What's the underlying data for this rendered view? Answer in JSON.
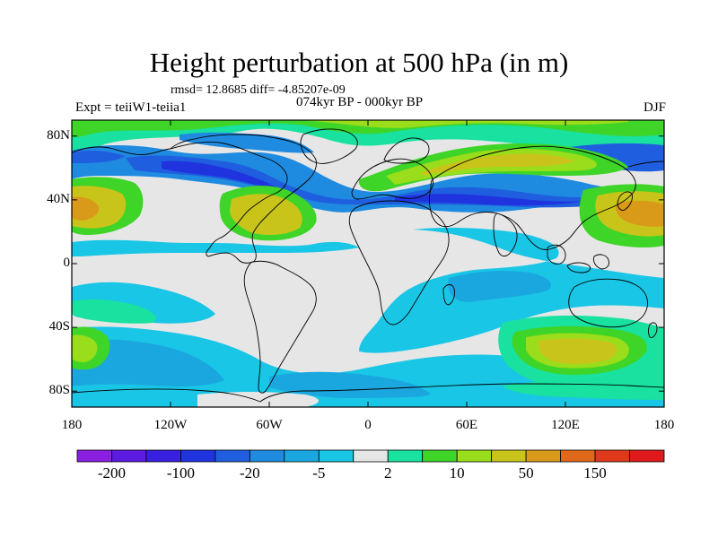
{
  "title": "Height perturbation at 500 hPa (in m)",
  "stats_line": "rmsd= 12.8685 diff= -4.85207e-09",
  "period": "074kyr BP - 000kyr BP",
  "experiment": "Expt = teiiW1-teiia1",
  "season": "DJF",
  "axes": {
    "y_ticks": [
      {
        "label": "80N",
        "lat": 80
      },
      {
        "label": "40N",
        "lat": 40
      },
      {
        "label": "0",
        "lat": 0
      },
      {
        "label": "40S",
        "lat": -40
      },
      {
        "label": "80S",
        "lat": -80
      }
    ],
    "x_ticks": [
      {
        "label": "180",
        "lon": -180
      },
      {
        "label": "120W",
        "lon": -120
      },
      {
        "label": "60W",
        "lon": -60
      },
      {
        "label": "0",
        "lon": 0
      },
      {
        "label": "60E",
        "lon": 60
      },
      {
        "label": "120E",
        "lon": 120
      },
      {
        "label": "180",
        "lon": 180
      }
    ],
    "lat_range": [
      -90,
      90
    ],
    "lon_range": [
      -180,
      180
    ]
  },
  "colorbar": {
    "colors": [
      "#8a1fe0",
      "#5d1ae0",
      "#3a1fe0",
      "#1f34df",
      "#1f5fdf",
      "#1f8be0",
      "#1aa7e0",
      "#19c6e6",
      "#e6e6e6",
      "#19e1a0",
      "#3ed428",
      "#9add1a",
      "#c9c41a",
      "#d99a1a",
      "#e0681a",
      "#e0381a",
      "#e01a1a"
    ],
    "labels": [
      {
        "text": "-200",
        "index": 1
      },
      {
        "text": "-100",
        "index": 3
      },
      {
        "text": "-20",
        "index": 5
      },
      {
        "text": "-5",
        "index": 7
      },
      {
        "text": "2",
        "index": 9
      },
      {
        "text": "10",
        "index": 11
      },
      {
        "text": "50",
        "index": 13
      },
      {
        "text": "150",
        "index": 15
      }
    ]
  },
  "legend_colors": {
    "neutral": "#e6e6e6",
    "coast": "#000000"
  }
}
